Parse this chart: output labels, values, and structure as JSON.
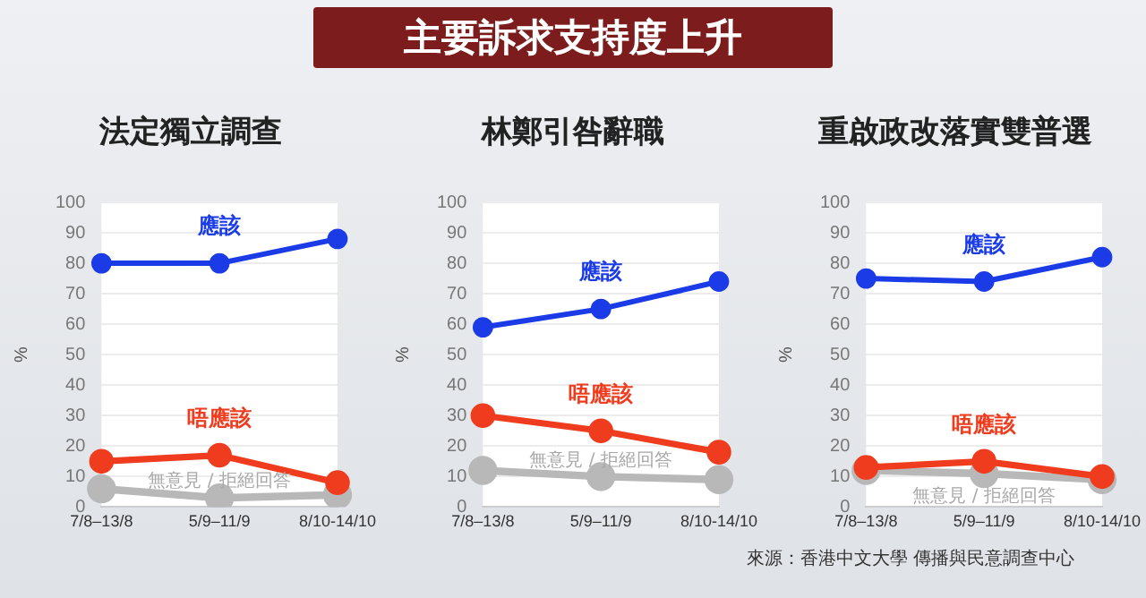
{
  "chart_data": [
    {
      "type": "other",
      "title": "主要訴求支持度上升"
    },
    {
      "type": "line",
      "title": "法定獨立調查",
      "ylabel": "%",
      "categories": [
        "7/8–13/8",
        "5/9–11/9",
        "8/10-14/10"
      ],
      "ylim": [
        0,
        100
      ],
      "yticks": [
        0,
        10,
        20,
        30,
        40,
        50,
        60,
        70,
        80,
        90,
        100
      ],
      "grid": "y",
      "legend": false,
      "marker": "circle",
      "series": [
        {
          "name": "應該",
          "color": "#1a3be6",
          "values": [
            80,
            80,
            88
          ]
        },
        {
          "name": "唔應該",
          "color": "#f03c1e",
          "values": [
            15,
            17,
            8
          ]
        },
        {
          "name": "無意見 / 拒絕回答",
          "color": "#b8b8b8",
          "values": [
            6,
            3,
            4
          ]
        }
      ]
    },
    {
      "type": "line",
      "title": "林鄭引咎辭職",
      "ylabel": "%",
      "categories": [
        "7/8–13/8",
        "5/9–11/9",
        "8/10-14/10"
      ],
      "ylim": [
        0,
        100
      ],
      "yticks": [
        0,
        10,
        20,
        30,
        40,
        50,
        60,
        70,
        80,
        90,
        100
      ],
      "grid": "y",
      "legend": false,
      "marker": "circle",
      "series": [
        {
          "name": "應該",
          "color": "#1a3be6",
          "values": [
            59,
            65,
            74
          ]
        },
        {
          "name": "唔應該",
          "color": "#f03c1e",
          "values": [
            30,
            25,
            18
          ]
        },
        {
          "name": "無意見 / 拒絕回答",
          "color": "#b8b8b8",
          "values": [
            12,
            10,
            9
          ]
        }
      ]
    },
    {
      "type": "line",
      "title": "重啟政改落實雙普選",
      "ylabel": "%",
      "categories": [
        "7/8–13/8",
        "5/9–11/9",
        "8/10-14/10"
      ],
      "ylim": [
        0,
        100
      ],
      "yticks": [
        0,
        10,
        20,
        30,
        40,
        50,
        60,
        70,
        80,
        90,
        100
      ],
      "grid": "y",
      "legend": false,
      "marker": "circle",
      "annotations": [
        "來源：香港中文大學 傳播與民意調查中心"
      ],
      "series": [
        {
          "name": "應該",
          "color": "#1a3be6",
          "values": [
            75,
            74,
            82
          ]
        },
        {
          "name": "唔應該",
          "color": "#f03c1e",
          "values": [
            13,
            15,
            10
          ]
        },
        {
          "name": "無意見 / 拒絕回答",
          "color": "#b8b8b8",
          "values": [
            12,
            11,
            9
          ]
        }
      ]
    }
  ]
}
